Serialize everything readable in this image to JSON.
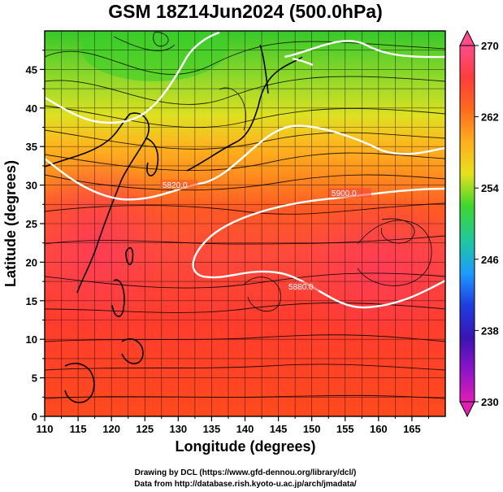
{
  "title": "GSM 18Z14Jun2024 (500.0hPa)",
  "x_axis": {
    "label": "Longitude (degrees)",
    "ticks": [
      "110",
      "115",
      "120",
      "125",
      "130",
      "135",
      "140",
      "145",
      "150",
      "155",
      "160",
      "165"
    ]
  },
  "y_axis": {
    "label": "Latitude  (degrees)",
    "ticks": [
      "0",
      "5",
      "10",
      "15",
      "20",
      "25",
      "30",
      "35",
      "40",
      "45"
    ]
  },
  "colorbar": {
    "ticks": [
      "270",
      "262",
      "254",
      "246",
      "238",
      "230"
    ],
    "colors": [
      "#ff4d8c",
      "#ff3c3c",
      "#ff6a1e",
      "#ffae1e",
      "#e8e01e",
      "#3fd62e",
      "#1ec8a0",
      "#1e9aff",
      "#1e3ce0",
      "#3a14b4",
      "#8c14c8",
      "#e01eb4"
    ]
  },
  "contour_labels": [
    "5820.0",
    "5880.0",
    "5900.0"
  ],
  "credits": {
    "line1": "Drawing by DCL (https://www.gfd-dennou.org/library/dcl/)",
    "line2": "Data from http://database.rish.kyoto-u.ac.jp/arch/jmadata/"
  },
  "map_data": {
    "lon_range": [
      110,
      170
    ],
    "lat_range": [
      0,
      50
    ],
    "grid_step_deg": 2.5
  }
}
